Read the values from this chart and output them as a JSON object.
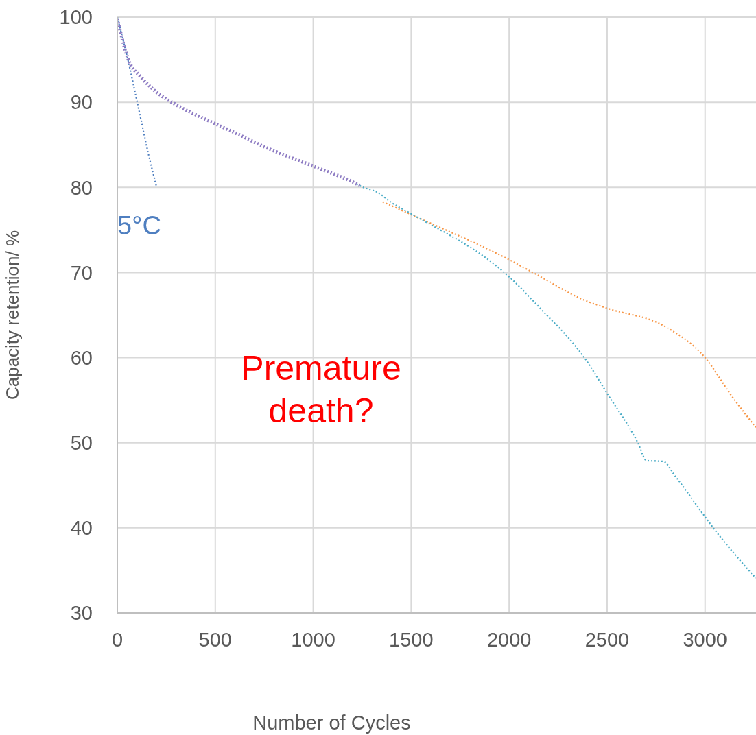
{
  "chart_data": {
    "type": "line",
    "xlabel": "Number of Cycles",
    "ylabel": "Capacity retention/ %",
    "xlim": [
      0,
      3260
    ],
    "xticks": [
      0,
      500,
      1000,
      1500,
      2000,
      2500,
      3000
    ],
    "ylim": [
      30,
      100
    ],
    "yticks": [
      30,
      40,
      50,
      60,
      70,
      80,
      90,
      100
    ],
    "grid": true,
    "line_style": "dotted",
    "marker": "none",
    "annotations": [
      "Premature death?"
    ],
    "series": [
      {
        "name": "5°C",
        "color": "#4f7fc0",
        "x": [
          0,
          56,
          112,
          161,
          200
        ],
        "values": [
          100,
          94.8,
          88.9,
          83.7,
          80.1
        ]
      },
      {
        "color": "#f79646",
        "x": [
          1355,
          1500,
          2000,
          2121,
          2400,
          2500,
          2800,
          3000,
          3136,
          3259
        ],
        "values": [
          78.3,
          76.8,
          71.5,
          70,
          66.6,
          65.8,
          63.6,
          60.0,
          55.5,
          51.8
        ]
      },
      {
        "color": "#4bacc6",
        "x": [
          1222,
          1246,
          1330,
          1400,
          1500,
          2000,
          2200,
          2300,
          2384,
          2500,
          2657,
          2702,
          2786,
          2850,
          3000,
          3042,
          3259
        ],
        "values": [
          80.4,
          80.1,
          79.4,
          78.2,
          76.9,
          69.5,
          64.8,
          62.4,
          60,
          55.8,
          50,
          47.9,
          47.8,
          46,
          41.3,
          40,
          34.1
        ]
      },
      {
        "color": "#8e7cc3",
        "x": [
          0,
          60,
          119,
          189,
          301,
          441,
          592,
          777,
          1011,
          1222,
          1246
        ],
        "values": [
          99.8,
          94.8,
          93.0,
          91.4,
          89.7,
          88.1,
          86.5,
          84.5,
          82.4,
          80.4,
          80.1
        ]
      }
    ]
  }
}
